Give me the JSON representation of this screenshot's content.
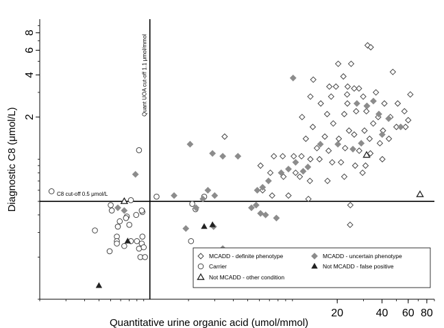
{
  "chart_data": {
    "type": "scatter",
    "title": "",
    "xlabel": "Quantitative urine organic acid (umol/mmol)",
    "ylabel": "Diagnostic C8 (μmol/L)",
    "x_scale": "log",
    "y_scale": "log",
    "xlim": [
      0.2,
      90
    ],
    "ylim": [
      0.1,
      10
    ],
    "x_ticks": [
      20,
      40,
      60,
      80
    ],
    "x_tick_labels": [
      "20",
      "40",
      "60",
      "80"
    ],
    "y_ticks": [
      2,
      4,
      6,
      8
    ],
    "y_tick_labels": [
      "2",
      "4",
      "6",
      "8"
    ],
    "reference_lines": [
      {
        "orientation": "horizontal",
        "value": 0.5,
        "label": "C8 cut-off 0.5 μmol/L"
      },
      {
        "orientation": "vertical",
        "value": 1.1,
        "label": "Quant UOA cut-off 1.1 μmol/mmol"
      }
    ],
    "legend_position": "bottom-right",
    "series": [
      {
        "name": "MCADD - definite phenotype",
        "marker": "diamond-open",
        "color": "#444444",
        "points": [
          [
            13.8,
            3.7
          ],
          [
            20.3,
            4.8
          ],
          [
            24.8,
            4.8
          ],
          [
            32,
            6.5
          ],
          [
            33.6,
            6.3
          ],
          [
            47.3,
            4.2
          ],
          [
            22,
            3.9
          ],
          [
            23.5,
            3.3
          ],
          [
            17.7,
            3.3
          ],
          [
            19.6,
            3.3
          ],
          [
            28,
            3.2
          ],
          [
            26,
            3.2
          ],
          [
            13.2,
            2.8
          ],
          [
            18.2,
            2.8
          ],
          [
            23.3,
            2.9
          ],
          [
            29.9,
            2.8
          ],
          [
            36.4,
            3
          ],
          [
            62,
            2.9
          ],
          [
            15.5,
            2.5
          ],
          [
            23.4,
            2.5
          ],
          [
            31.6,
            2.4
          ],
          [
            41.5,
            2.5
          ],
          [
            51,
            2.5
          ],
          [
            11.6,
            2
          ],
          [
            17.1,
            2.1
          ],
          [
            22.3,
            2.1
          ],
          [
            26.8,
            2.2
          ],
          [
            31.4,
            2.2
          ],
          [
            37.7,
            2
          ],
          [
            45.5,
            2
          ],
          [
            56.6,
            2.2
          ],
          [
            60,
            1.9
          ],
          [
            13.7,
            1.7
          ],
          [
            18.8,
            1.8
          ],
          [
            24,
            1.6
          ],
          [
            30.5,
            1.6
          ],
          [
            34.9,
            1.8
          ],
          [
            40.6,
            1.6
          ],
          [
            50,
            1.7
          ],
          [
            57.6,
            1.7
          ],
          [
            12.3,
            1.4
          ],
          [
            16.5,
            1.45
          ],
          [
            20.5,
            1.4
          ],
          [
            26,
            1.5
          ],
          [
            33,
            1.4
          ],
          [
            38.7,
            1.3
          ],
          [
            44.5,
            1.4
          ],
          [
            14.6,
            1.2
          ],
          [
            17.5,
            1.15
          ],
          [
            22.6,
            1.2
          ],
          [
            28.1,
            1.15
          ],
          [
            33.4,
            1.1
          ],
          [
            40.2,
            1
          ],
          [
            7.5,
            1.05
          ],
          [
            8.6,
            1.05
          ],
          [
            10.2,
            1.05
          ],
          [
            11.5,
            1.05
          ],
          [
            13.2,
            1
          ],
          [
            15.2,
            1
          ],
          [
            18.5,
            0.95
          ],
          [
            21.2,
            0.95
          ],
          [
            26.4,
            0.9
          ],
          [
            31,
            0.9
          ],
          [
            6.1,
            0.9
          ],
          [
            7.1,
            0.8
          ],
          [
            8.7,
            0.75
          ],
          [
            10.5,
            0.8
          ],
          [
            11.2,
            0.75
          ],
          [
            13.1,
            0.7
          ],
          [
            17.2,
            0.7
          ],
          [
            22.3,
            0.75
          ],
          [
            29.6,
            0.8
          ],
          [
            6.3,
            0.6
          ],
          [
            7.3,
            0.55
          ],
          [
            9.4,
            0.55
          ],
          [
            12.8,
            0.52
          ],
          [
            24.5,
            0.47
          ],
          [
            24.4,
            0.34
          ],
          [
            16.4,
            0.16
          ],
          [
            3.5,
            1.45
          ]
        ]
      },
      {
        "name": "Carrier",
        "marker": "circle-open",
        "color": "#444444",
        "points": [
          [
            0.24,
            0.59
          ],
          [
            0.6,
            0.47
          ],
          [
            0.82,
            0.51
          ],
          [
            1.22,
            0.54
          ],
          [
            0.93,
            1.16
          ],
          [
            0.61,
            0.43
          ],
          [
            0.47,
            0.31
          ],
          [
            0.77,
            0.39
          ],
          [
            0.89,
            0.4
          ],
          [
            0.98,
            0.42
          ],
          [
            0.97,
            0.43
          ],
          [
            0.69,
            0.36
          ],
          [
            0.67,
            0.33
          ],
          [
            0.8,
            0.34
          ],
          [
            0.76,
            0.38
          ],
          [
            0.66,
            0.28
          ],
          [
            0.66,
            0.26
          ],
          [
            0.66,
            0.25
          ],
          [
            0.9,
            0.26
          ],
          [
            0.93,
            0.23
          ],
          [
            0.82,
            0.26
          ],
          [
            0.74,
            0.24
          ],
          [
            0.98,
            0.28
          ],
          [
            0.97,
            0.25
          ],
          [
            1.0,
            0.235
          ],
          [
            0.59,
            0.22
          ],
          [
            0.95,
            0.2
          ],
          [
            1.02,
            0.2
          ],
          [
            2.12,
            0.48
          ],
          [
            2.23,
            0.44
          ],
          [
            2.55,
            0.54
          ],
          [
            2.08,
            0.26
          ]
        ]
      },
      {
        "name": "MCADD - uncertain phenotype",
        "marker": "diamond-filled",
        "color": "#8c8c8c",
        "points": [
          [
            10.1,
            3.8
          ],
          [
            2.05,
            1.28
          ],
          [
            2.9,
            1.1
          ],
          [
            3.4,
            1.05
          ],
          [
            4.3,
            1.05
          ],
          [
            0.88,
            0.78
          ],
          [
            1.6,
            0.55
          ],
          [
            2.7,
            0.6
          ],
          [
            2.5,
            0.52
          ],
          [
            2.25,
            0.45
          ],
          [
            3.0,
            0.55
          ],
          [
            5.3,
            0.45
          ],
          [
            5.7,
            0.47
          ],
          [
            7.8,
            0.38
          ],
          [
            2.95,
            0.33
          ],
          [
            6.1,
            0.41
          ],
          [
            6.6,
            0.4
          ],
          [
            5.8,
            0.6
          ],
          [
            6.3,
            0.63
          ],
          [
            6.9,
            0.7
          ],
          [
            8.4,
            0.8
          ],
          [
            9.4,
            0.85
          ],
          [
            10.5,
            0.95
          ],
          [
            11.8,
            0.82
          ],
          [
            12.7,
            0.88
          ],
          [
            15.4,
            1.28
          ],
          [
            20.2,
            1.28
          ],
          [
            25.5,
            1.18
          ],
          [
            27.1,
            2.5
          ],
          [
            31.7,
            2.4
          ],
          [
            35,
            2.6
          ],
          [
            38.1,
            2.1
          ],
          [
            44.3,
            1.95
          ],
          [
            53.4,
            1.7
          ],
          [
            40.1,
            1.5
          ],
          [
            29,
            1.3
          ],
          [
            0.67,
            0.45
          ],
          [
            0.74,
            0.43
          ],
          [
            1.92,
            0.32
          ],
          [
            3.4,
            0.23
          ]
        ]
      },
      {
        "name": "Not MCADD - false positive",
        "marker": "triangle-filled",
        "color": "#222222",
        "points": [
          [
            2.55,
            0.33
          ],
          [
            2.9,
            0.34
          ],
          [
            0.78,
            0.26
          ],
          [
            0.5,
            0.125
          ]
        ]
      },
      {
        "name": "Not MCADD - other condition",
        "marker": "triangle-open",
        "color": "#222222",
        "points": [
          [
            0.74,
            0.5
          ],
          [
            31.5,
            1.07
          ],
          [
            72,
            0.56
          ]
        ]
      }
    ]
  }
}
